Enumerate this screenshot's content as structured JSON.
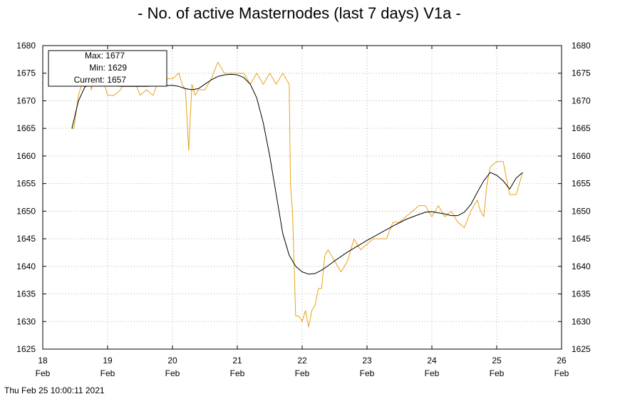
{
  "title": "- No. of active Masternodes (last 7 days) V1a -",
  "timestamp": "Thu Feb 25 10:00:11 2021",
  "legend": {
    "max_label": "Max: 1677",
    "min_label": "Min: 1629",
    "current_label": "Current: 1657"
  },
  "colors": {
    "raw_series": "#e8a317",
    "smoothed_series": "#000000",
    "grid": "#b0b0b0"
  },
  "chart_data": {
    "type": "line",
    "title": "- No. of active Masternodes (last 7 days) V1a -",
    "xlabel": "",
    "ylabel": "",
    "xlim": [
      18,
      26
    ],
    "ylim": [
      1625,
      1680
    ],
    "x_ticks": [
      {
        "value": 18,
        "day": "18",
        "month": "Feb"
      },
      {
        "value": 19,
        "day": "19",
        "month": "Feb"
      },
      {
        "value": 20,
        "day": "20",
        "month": "Feb"
      },
      {
        "value": 21,
        "day": "21",
        "month": "Feb"
      },
      {
        "value": 22,
        "day": "22",
        "month": "Feb"
      },
      {
        "value": 23,
        "day": "23",
        "month": "Feb"
      },
      {
        "value": 24,
        "day": "24",
        "month": "Feb"
      },
      {
        "value": 25,
        "day": "25",
        "month": "Feb"
      },
      {
        "value": 26,
        "day": "26",
        "month": "Feb"
      }
    ],
    "y_ticks": [
      1625,
      1630,
      1635,
      1640,
      1645,
      1650,
      1655,
      1660,
      1665,
      1670,
      1675,
      1680
    ],
    "grid": true,
    "legend_position": "top-left",
    "series": [
      {
        "x": [
          18.45,
          18.48,
          18.55,
          18.6,
          18.65,
          18.7,
          18.75,
          18.8,
          18.9,
          19.0,
          19.1,
          19.2,
          19.3,
          19.4,
          19.5,
          19.6,
          19.7,
          19.8,
          19.9,
          20.0,
          20.1,
          20.15,
          20.2,
          20.25,
          20.3,
          20.35,
          20.4,
          20.5,
          20.6,
          20.7,
          20.8,
          20.9,
          21.0,
          21.1,
          21.2,
          21.3,
          21.4,
          21.5,
          21.6,
          21.7,
          21.8,
          21.82,
          21.85,
          21.9,
          21.95,
          22.0,
          22.05,
          22.1,
          22.15,
          22.2,
          22.25,
          22.3,
          22.35,
          22.4,
          22.5,
          22.6,
          22.7,
          22.8,
          22.9,
          23.0,
          23.1,
          23.2,
          23.3,
          23.4,
          23.5,
          23.6,
          23.7,
          23.8,
          23.9,
          24.0,
          24.1,
          24.2,
          24.3,
          24.4,
          24.5,
          24.6,
          24.7,
          24.75,
          24.8,
          24.85,
          24.9,
          25.0,
          25.1,
          25.15,
          25.2,
          25.3,
          25.4
        ],
        "values": [
          1665,
          1665,
          1671,
          1673,
          1676,
          1676,
          1672,
          1675,
          1675,
          1671,
          1671,
          1672,
          1674,
          1674,
          1671,
          1672,
          1671,
          1674,
          1674,
          1674,
          1675,
          1673,
          1672,
          1661,
          1673,
          1671,
          1672,
          1672,
          1674,
          1677,
          1675,
          1675,
          1675,
          1675,
          1673,
          1675,
          1673,
          1675,
          1673,
          1675,
          1673,
          1655,
          1650,
          1631,
          1631,
          1630,
          1632,
          1629,
          1632,
          1633,
          1636,
          1636,
          1642,
          1643,
          1641,
          1639,
          1641,
          1645,
          1643,
          1644,
          1645,
          1645,
          1645,
          1648,
          1648,
          1649,
          1650,
          1651,
          1651,
          1649,
          1651,
          1649,
          1650,
          1648,
          1647,
          1650,
          1652,
          1650,
          1649,
          1655,
          1658,
          1659,
          1659,
          1656,
          1653,
          1653,
          1657
        ]
      },
      {
        "x": [
          18.45,
          18.55,
          18.65,
          18.75,
          18.85,
          19.0,
          19.2,
          19.4,
          19.6,
          19.8,
          20.0,
          20.1,
          20.2,
          20.3,
          20.4,
          20.5,
          20.6,
          20.7,
          20.8,
          20.9,
          21.0,
          21.1,
          21.2,
          21.3,
          21.4,
          21.5,
          21.6,
          21.7,
          21.8,
          21.9,
          22.0,
          22.1,
          22.2,
          22.3,
          22.4,
          22.5,
          22.6,
          22.7,
          22.8,
          22.9,
          23.0,
          23.2,
          23.4,
          23.6,
          23.8,
          23.9,
          24.0,
          24.1,
          24.2,
          24.3,
          24.4,
          24.5,
          24.6,
          24.7,
          24.8,
          24.9,
          25.0,
          25.1,
          25.2,
          25.3,
          25.4
        ],
        "values": [
          1665,
          1670,
          1672.5,
          1673,
          1673,
          1672.8,
          1672.6,
          1672.6,
          1672.6,
          1672.7,
          1672.8,
          1672.6,
          1672.2,
          1672,
          1672.2,
          1673,
          1673.8,
          1674.4,
          1674.7,
          1674.8,
          1674.7,
          1674.2,
          1673,
          1670.5,
          1666,
          1660,
          1653,
          1646,
          1642,
          1640,
          1639,
          1638.6,
          1638.7,
          1639.3,
          1640.1,
          1641,
          1641.8,
          1642.6,
          1643.3,
          1644,
          1644.7,
          1646,
          1647.3,
          1648.5,
          1649.4,
          1649.8,
          1649.9,
          1649.7,
          1649.5,
          1649.2,
          1649.2,
          1649.8,
          1651.2,
          1653.4,
          1655.5,
          1657,
          1656.5,
          1655.5,
          1654,
          1656,
          1657
        ]
      }
    ]
  }
}
